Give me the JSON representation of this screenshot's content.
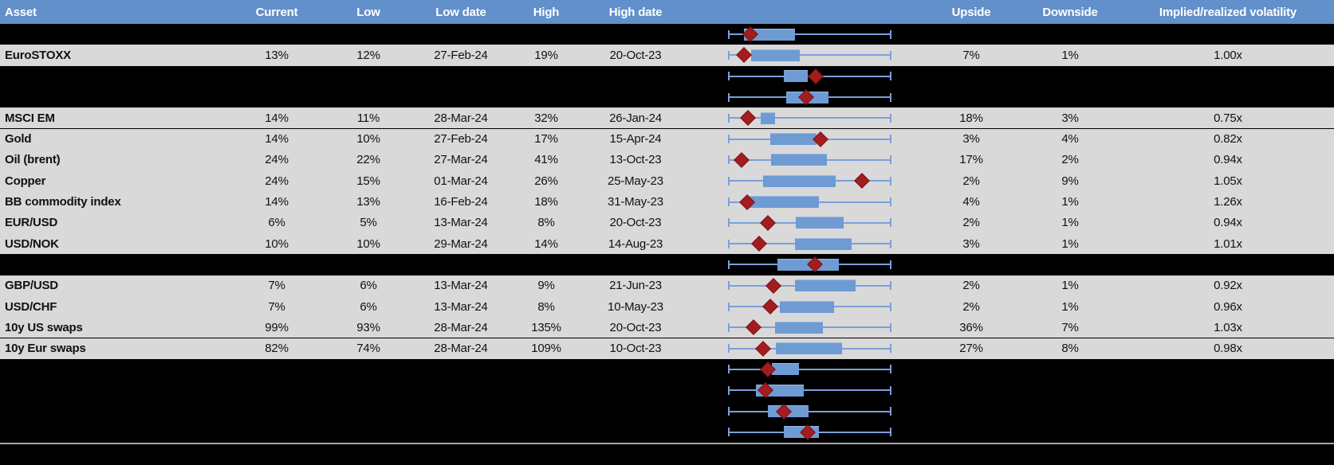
{
  "colors": {
    "header_bg": "#6190CB",
    "header_text": "#FFFFFF",
    "row_bg": "#D9D9D9",
    "hidden_row_bg": "#000000",
    "cell_text": "#111111",
    "whisker": "#7BA0D8",
    "box_fill": "#6F9BD4",
    "marker_fill": "#A21D20",
    "marker_border": "#801114",
    "divider": "#A6A6A6"
  },
  "chart_data": {
    "type": "table",
    "description": "Implied volatility monitor: table of current / 52-week low / 52-week high implied vols with dates, plus an inline box-whisker chart per row (whisker = full range, box = inner range, red diamond = current level, normalized 0-1 across the whisker span). Black rows are hidden assets showing only their box plot.",
    "boxplot_encoding": {
      "box": "[start,end] fraction 0-1 of whisker span",
      "marker": "diamond position, fraction 0-1"
    },
    "legend_position": "none",
    "grid": false,
    "columns": [
      {
        "key": "asset",
        "label": "Asset"
      },
      {
        "key": "current",
        "label": "Current"
      },
      {
        "key": "low",
        "label": "Low"
      },
      {
        "key": "low_date",
        "label": "Low date"
      },
      {
        "key": "high",
        "label": "High"
      },
      {
        "key": "high_date",
        "label": "High date"
      },
      {
        "key": "upside",
        "label": "Upside"
      },
      {
        "key": "downside",
        "label": "Downside"
      },
      {
        "key": "implied_realized",
        "label": "Implied/realized volatility"
      }
    ],
    "rows": [
      {
        "hidden": true,
        "asset": "",
        "box": [
          0.098,
          0.41
        ],
        "marker": 0.137
      },
      {
        "hidden": false,
        "asset": "EuroSTOXX",
        "current": "13%",
        "low": "12%",
        "low_date": "27-Feb-24",
        "high": "19%",
        "high_date": "20-Oct-23",
        "upside": "7%",
        "downside": "1%",
        "implied_realized": "1.00x",
        "box": [
          0.141,
          0.439
        ],
        "marker": 0.098
      },
      {
        "hidden": true,
        "asset": "",
        "box": [
          0.341,
          0.488
        ],
        "marker": 0.537
      },
      {
        "hidden": true,
        "asset": "",
        "box": [
          0.356,
          0.615
        ],
        "marker": 0.478
      },
      {
        "hidden": false,
        "asset": "MSCI EM",
        "current": "14%",
        "low": "11%",
        "low_date": "28-Mar-24",
        "high": "32%",
        "high_date": "26-Jan-24",
        "upside": "18%",
        "downside": "3%",
        "implied_realized": "0.75x",
        "box": [
          0.2,
          0.288
        ],
        "marker": 0.122
      },
      {
        "hidden": false,
        "asset": "Gold",
        "current": "14%",
        "low": "10%",
        "low_date": "27-Feb-24",
        "high": "17%",
        "high_date": "15-Apr-24",
        "upside": "3%",
        "downside": "4%",
        "implied_realized": "0.82x",
        "box": [
          0.259,
          0.541
        ],
        "marker": 0.566
      },
      {
        "hidden": false,
        "asset": "Oil (brent)",
        "current": "24%",
        "low": "22%",
        "low_date": "27-Mar-24",
        "high": "41%",
        "high_date": "13-Oct-23",
        "upside": "17%",
        "downside": "2%",
        "implied_realized": "0.94x",
        "box": [
          0.263,
          0.605
        ],
        "marker": 0.083
      },
      {
        "hidden": false,
        "asset": "Copper",
        "current": "24%",
        "low": "15%",
        "low_date": "01-Mar-24",
        "high": "26%",
        "high_date": "25-May-23",
        "upside": "2%",
        "downside": "9%",
        "implied_realized": "1.05x",
        "box": [
          0.215,
          0.659
        ],
        "marker": 0.82
      },
      {
        "hidden": false,
        "asset": "BB commodity index",
        "current": "14%",
        "low": "13%",
        "low_date": "16-Feb-24",
        "high": "18%",
        "high_date": "31-May-23",
        "upside": "4%",
        "downside": "1%",
        "implied_realized": "1.26x",
        "box": [
          0.122,
          0.556
        ],
        "marker": 0.117
      },
      {
        "hidden": false,
        "asset": "EUR/USD",
        "current": "6%",
        "low": "5%",
        "low_date": "13-Mar-24",
        "high": "8%",
        "high_date": "20-Oct-23",
        "upside": "2%",
        "downside": "1%",
        "implied_realized": "0.94x",
        "box": [
          0.415,
          0.707
        ],
        "marker": 0.244
      },
      {
        "hidden": false,
        "asset": "USD/NOK",
        "current": "10%",
        "low": "10%",
        "low_date": "29-Mar-24",
        "high": "14%",
        "high_date": "14-Aug-23",
        "upside": "3%",
        "downside": "1%",
        "implied_realized": "1.01x",
        "box": [
          0.41,
          0.756
        ],
        "marker": 0.19
      },
      {
        "hidden": true,
        "asset": "",
        "box": [
          0.302,
          0.678
        ],
        "marker": 0.532
      },
      {
        "hidden": false,
        "asset": "GBP/USD",
        "current": "7%",
        "low": "6%",
        "low_date": "13-Mar-24",
        "high": "9%",
        "high_date": "21-Jun-23",
        "upside": "2%",
        "downside": "1%",
        "implied_realized": "0.92x",
        "box": [
          0.41,
          0.78
        ],
        "marker": 0.278
      },
      {
        "hidden": false,
        "asset": "USD/CHF",
        "current": "7%",
        "low": "6%",
        "low_date": "13-Mar-24",
        "high": "8%",
        "high_date": "10-May-23",
        "upside": "2%",
        "downside": "1%",
        "implied_realized": "0.96x",
        "box": [
          0.317,
          0.649
        ],
        "marker": 0.259
      },
      {
        "hidden": false,
        "asset": "10y US swaps",
        "current": "99%",
        "low": "93%",
        "low_date": "28-Mar-24",
        "high": "135%",
        "high_date": "20-Oct-23",
        "upside": "36%",
        "downside": "7%",
        "implied_realized": "1.03x",
        "box": [
          0.288,
          0.581
        ],
        "marker": 0.156
      },
      {
        "hidden": false,
        "asset": "10y Eur swaps",
        "current": "82%",
        "low": "74%",
        "low_date": "28-Mar-24",
        "high": "109%",
        "high_date": "10-Oct-23",
        "upside": "27%",
        "downside": "8%",
        "implied_realized": "0.98x",
        "box": [
          0.293,
          0.698
        ],
        "marker": 0.215
      },
      {
        "hidden": true,
        "asset": "",
        "box": [
          0.268,
          0.434
        ],
        "marker": 0.244
      },
      {
        "hidden": true,
        "asset": "",
        "box": [
          0.171,
          0.463
        ],
        "marker": 0.229
      },
      {
        "hidden": true,
        "asset": "",
        "box": [
          0.244,
          0.493
        ],
        "marker": 0.342
      },
      {
        "hidden": true,
        "asset": "",
        "box": [
          0.342,
          0.556
        ],
        "marker": 0.488
      }
    ]
  }
}
